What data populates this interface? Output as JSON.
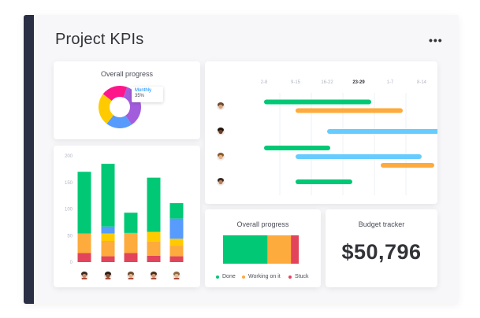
{
  "header": {
    "title": "Project KPIs",
    "more_label": "•••"
  },
  "colors": {
    "done": "#00c875",
    "working": "#fdab3d",
    "stuck": "#e2445c",
    "blue": "#579bfc",
    "light_blue": "#66ccff",
    "purple": "#a25ddc",
    "pink": "#ff158a",
    "yellow": "#ffcb00",
    "frame_bar": "#2a2f45"
  },
  "donut_card": {
    "title": "Overall progress",
    "tooltip": {
      "label": "Monthly",
      "value": "35%"
    },
    "segments": [
      {
        "name": "purple",
        "value": 35,
        "color": "#a25ddc"
      },
      {
        "name": "blue",
        "value": 20,
        "color": "#579bfc"
      },
      {
        "name": "yellow",
        "value": 25,
        "color": "#ffcb00"
      },
      {
        "name": "pink",
        "value": 20,
        "color": "#ff158a"
      }
    ]
  },
  "bar_chart": {
    "chart_data": {
      "type": "bar",
      "stacked": true,
      "categories": [
        "person-1",
        "person-2",
        "person-3",
        "person-4",
        "person-5"
      ],
      "yticks": [
        "200",
        "150",
        "100",
        "50",
        "0"
      ],
      "ylim": [
        0,
        200
      ],
      "series": [
        {
          "color": "#e2445c",
          "values": [
            17,
            11,
            17,
            12,
            11
          ]
        },
        {
          "color": "#fdab3d",
          "values": [
            37,
            29,
            38,
            27,
            20
          ]
        },
        {
          "color": "#ffcb00",
          "values": [
            0,
            14,
            0,
            18,
            13
          ]
        },
        {
          "color": "#579bfc",
          "values": [
            0,
            13,
            0,
            0,
            38
          ]
        },
        {
          "color": "#00c875",
          "values": [
            116,
            118,
            38,
            102,
            29
          ]
        }
      ]
    }
  },
  "gantt": {
    "weeks": [
      "2-8",
      "9-15",
      "16-22",
      "23-29",
      "1-7",
      "8-14"
    ],
    "active_week": 3,
    "rows": [
      {
        "bars": [
          {
            "start": 0.5,
            "end": 3.9,
            "color": "#00c875"
          },
          {
            "start": 1.5,
            "end": 4.9,
            "color": "#fdab3d"
          }
        ]
      },
      {
        "bars": [
          {
            "start": 2.5,
            "end": 6.2,
            "color": "#66ccff"
          }
        ]
      },
      {
        "bars": [
          {
            "start": 0.5,
            "end": 2.6,
            "color": "#00c875"
          },
          {
            "start": 1.5,
            "end": 5.5,
            "color": "#66ccff"
          },
          {
            "start": 4.2,
            "end": 5.9,
            "color": "#fdab3d"
          }
        ]
      },
      {
        "bars": [
          {
            "start": 1.5,
            "end": 3.3,
            "color": "#00c875"
          }
        ]
      }
    ]
  },
  "progress_card": {
    "title": "Overall progress",
    "segments": [
      {
        "label": "Done",
        "value": 57,
        "color": "#00c875"
      },
      {
        "label": "Working on it",
        "value": 30,
        "color": "#fdab3d"
      },
      {
        "label": "Stuck",
        "value": 10,
        "color": "#e2445c"
      }
    ]
  },
  "budget_card": {
    "title": "Budget tracker",
    "value": "$50,796"
  }
}
